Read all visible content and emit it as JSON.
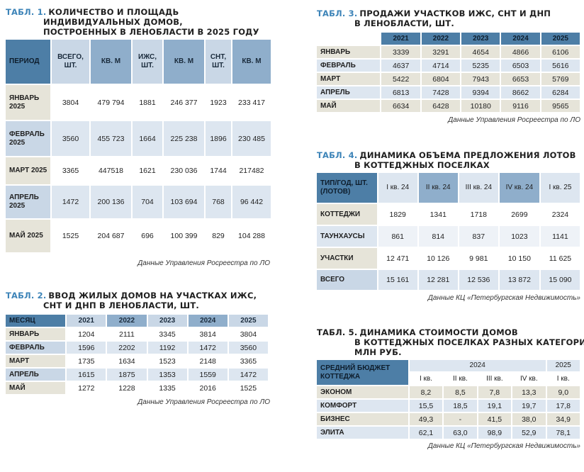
{
  "t1": {
    "number": "ТАБЛ. 1.",
    "title_lines": [
      "КОЛИЧЕСТВО И ПЛОЩАДЬ",
      "ИНДИВИДУАЛЬНЫХ ДОМОВ,",
      "ПОСТРОЕННЫХ В ЛЕНОБЛАСТИ В 2025 ГОДУ"
    ],
    "headers": [
      "ПЕРИОД",
      "ВСЕГО, ШТ.",
      "КВ. М",
      "ИЖС, ШТ.",
      "КВ. М",
      "СНТ, ШТ.",
      "КВ. М"
    ],
    "rows": [
      [
        "ЯНВАРЬ 2025",
        "3804",
        "479 794",
        "1881",
        "246 377",
        "1923",
        "233 417"
      ],
      [
        "ФЕВРАЛЬ 2025",
        "3560",
        "455 723",
        "1664",
        "225 238",
        "1896",
        "230 485"
      ],
      [
        "МАРТ 2025",
        "3365",
        "447518",
        "1621",
        "230 036",
        "1744",
        "217482"
      ],
      [
        "АПРЕЛЬ 2025",
        "1472",
        "200 136",
        "704",
        "103 694",
        "768",
        "96 442"
      ],
      [
        "МАЙ 2025",
        "1525",
        "204 687",
        "696",
        "100 399",
        "829",
        "104 288"
      ]
    ],
    "source": "Данные Управления Росреестра по ЛО"
  },
  "t2": {
    "number": "ТАБЛ. 2.",
    "title_lines": [
      "ВВОД ЖИЛЫХ ДОМОВ НА УЧАСТКАХ ИЖС,",
      "СНТ И ДНП В ЛЕНОБЛАСТИ, ШТ."
    ],
    "headers": [
      "МЕСЯЦ",
      "2021",
      "2022",
      "2023",
      "2024",
      "2025"
    ],
    "rows": [
      [
        "ЯНВАРЬ",
        "1204",
        "2111",
        "3345",
        "3814",
        "3804"
      ],
      [
        "ФЕВРАЛЬ",
        "1596",
        "2202",
        "1192",
        "1472",
        "3560"
      ],
      [
        "МАРТ",
        "1735",
        "1634",
        "1523",
        "2148",
        "3365"
      ],
      [
        "АПРЕЛЬ",
        "1615",
        "1875",
        "1353",
        "1559",
        "1472"
      ],
      [
        "МАЙ",
        "1272",
        "1228",
        "1335",
        "2016",
        "1525"
      ]
    ],
    "source": "Данные Управления Росреестра по ЛО"
  },
  "t3": {
    "number": "ТАБЛ. 3.",
    "title_lines": [
      "ПРОДАЖИ УЧАСТКОВ ИЖС, СНТ И ДНП",
      "В ЛЕНОБЛАСТИ, ШТ."
    ],
    "headers": [
      "",
      "2021",
      "2022",
      "2023",
      "2024",
      "2025"
    ],
    "rows": [
      [
        "ЯНВАРЬ",
        "3339",
        "3291",
        "4654",
        "4866",
        "6106"
      ],
      [
        "ФЕВРАЛЬ",
        "4637",
        "4714",
        "5235",
        "6503",
        "5616"
      ],
      [
        "МАРТ",
        "5422",
        "6804",
        "7943",
        "6653",
        "5769"
      ],
      [
        "АПРЕЛЬ",
        "6813",
        "7428",
        "9394",
        "8662",
        "6284"
      ],
      [
        "МАЙ",
        "6634",
        "6428",
        "10180",
        "9116",
        "9565"
      ]
    ],
    "source": "Данные Управления Росреестра по ЛО"
  },
  "t4": {
    "number": "ТАБЛ. 4.",
    "title_lines": [
      "ДИНАМИКА ОБЪЕМА ПРЕДЛОЖЕНИЯ ЛОТОВ",
      "В КОТТЕДЖНЫХ ПОСЕЛКАХ"
    ],
    "headers": [
      "ТИП/ГОД, ШТ. (ЛОТОВ)",
      "I кв. 24",
      "II кв. 24",
      "III кв. 24",
      "IV кв. 24",
      "I кв. 25"
    ],
    "rows": [
      [
        "КОТТЕДЖИ",
        "1829",
        "1341",
        "1718",
        "2699",
        "2324"
      ],
      [
        "ТАУНХАУСЫ",
        "861",
        "814",
        "837",
        "1023",
        "1141"
      ],
      [
        "УЧАСТКИ",
        "12 471",
        "10 126",
        "9 981",
        "10 150",
        "11 625"
      ],
      [
        "ВСЕГО",
        "15 161",
        "12 281",
        "12 536",
        "13 872",
        "15 090"
      ]
    ],
    "source": "Данные КЦ «Петербургская Недвижимость»"
  },
  "t5": {
    "number": "ТАБЛ. 5.",
    "title_lines": [
      "ДИНАМИКА СТОИМОСТИ ДОМОВ",
      "В КОТТЕДЖНЫХ ПОСЕЛКАХ РАЗНЫХ КАТЕГОРИЙ,",
      "МЛН РУБ."
    ],
    "corner": "СРЕДНИЙ БЮДЖЕТ КОТТЕДЖА",
    "year_a": "2024",
    "year_b": "2025",
    "quarters": [
      "I кв.",
      "II кв.",
      "III кв.",
      "IV кв.",
      "I кв."
    ],
    "rows": [
      [
        "ЭКОНОМ",
        "8,2",
        "8,5",
        "7,8",
        "13,3",
        "9,0"
      ],
      [
        "КОМФОРТ",
        "15,5",
        "18,5",
        "19,1",
        "19,7",
        "17,8"
      ],
      [
        "БИЗНЕС",
        "49,3",
        "-",
        "41,5",
        "38,0",
        "34,9"
      ],
      [
        "ЭЛИТА",
        "62,1",
        "63,0",
        "98,9",
        "52,9",
        "78,1"
      ]
    ],
    "source": "Данные КЦ «Петербургская Недвижимость»"
  }
}
